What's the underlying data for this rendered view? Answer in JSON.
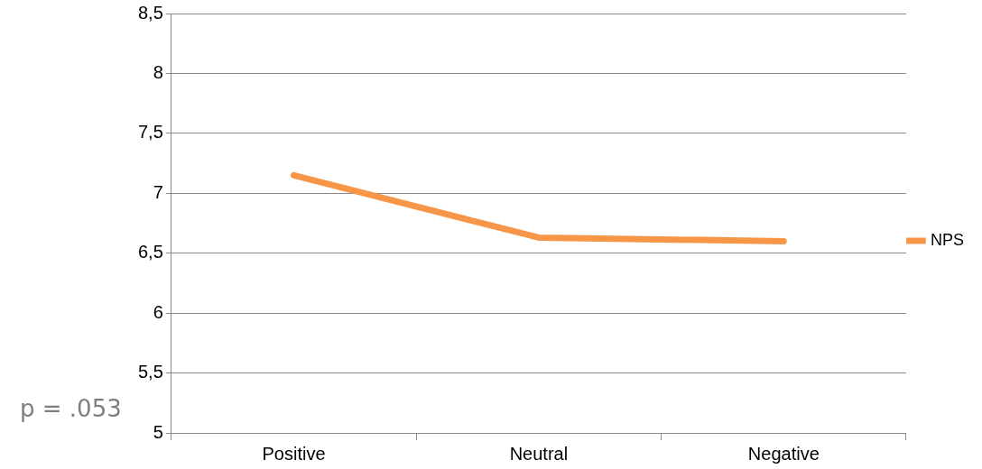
{
  "chart_data": {
    "type": "line",
    "categories": [
      "Positive",
      "Neutral",
      "Negative"
    ],
    "series": [
      {
        "name": "NPS",
        "color": "#f79646",
        "values": [
          7.15,
          6.63,
          6.6
        ]
      }
    ],
    "ylim": [
      5,
      8.5
    ],
    "yticks": [
      {
        "value": 5,
        "label": "5"
      },
      {
        "value": 5.5,
        "label": "5,5"
      },
      {
        "value": 6,
        "label": "6"
      },
      {
        "value": 6.5,
        "label": "6,5"
      },
      {
        "value": 7,
        "label": "7"
      },
      {
        "value": 7.5,
        "label": "7,5"
      },
      {
        "value": 8,
        "label": "8"
      },
      {
        "value": 8.5,
        "label": "8,5"
      }
    ],
    "grid": "y",
    "legend": "right",
    "marker": "none",
    "line_style": "solid",
    "annotations": [
      "p = .053"
    ]
  }
}
